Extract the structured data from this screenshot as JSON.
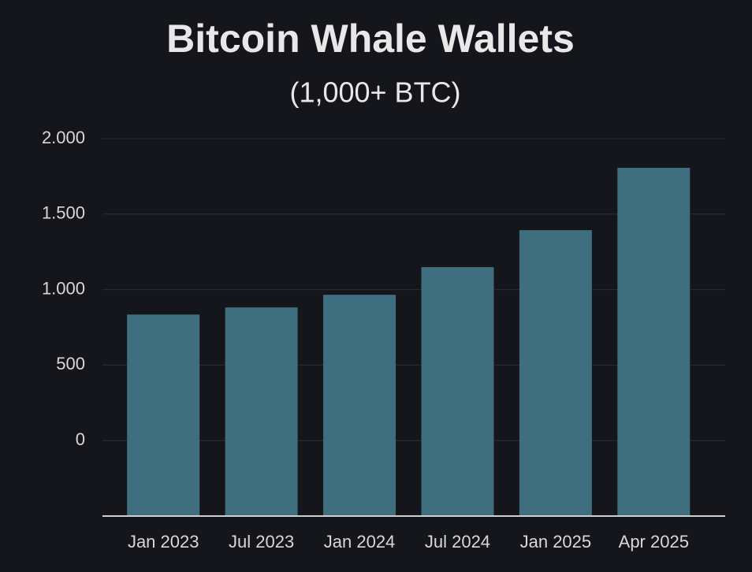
{
  "chart_data": {
    "type": "bar",
    "title": "Bitcoin Whale Wallets",
    "subtitle": "(1,000+ BTC)",
    "categories": [
      "Jan 2023",
      "Jul 2023",
      "Jan 2024",
      "Jul 2024",
      "Jan 2025",
      "Apr 2025"
    ],
    "values": [
      835,
      882,
      966,
      1149,
      1394,
      1807
    ],
    "color": "#3f6e7e",
    "ylim": [
      -500,
      2000
    ],
    "yticks": [
      0,
      500,
      {
        "value": 1000,
        "label": "1.000"
      },
      {
        "value": 1500,
        "label": "1.500"
      },
      {
        "value": 2000,
        "label": "2.000"
      }
    ],
    "grid": true
  }
}
